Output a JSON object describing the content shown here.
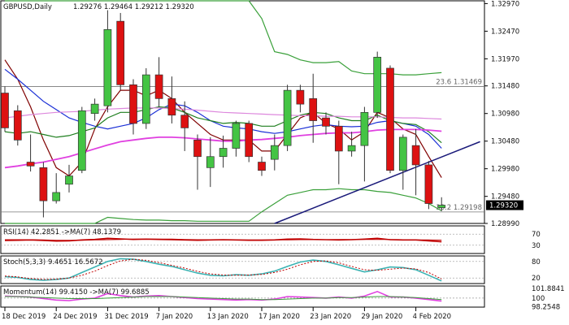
{
  "chart_data": [
    {
      "type": "candlestick",
      "title": "GBPUSD,Daily",
      "ohlc_header": "1.29276 1.29464 1.29212 1.29320",
      "last_price": "1.29320",
      "ylim": [
        1.2899,
        1.3302
      ],
      "yticks": [
        "1.32970",
        "1.32470",
        "1.31970",
        "1.31480",
        "1.30980",
        "1.30480",
        "1.29980",
        "1.29480",
        "1.28990"
      ],
      "xticks": [
        {
          "label": "18 Dec 2019",
          "i": 0
        },
        {
          "label": "24 Dec 2019",
          "i": 4
        },
        {
          "label": "31 Dec 2019",
          "i": 8
        },
        {
          "label": "7 Jan 2020",
          "i": 12
        },
        {
          "label": "13 Jan 2020",
          "i": 16
        },
        {
          "label": "17 Jan 2020",
          "i": 20
        },
        {
          "label": "23 Jan 2020",
          "i": 24
        },
        {
          "label": "29 Jan 2020",
          "i": 28
        },
        {
          "label": "4 Feb 2020",
          "i": 32
        }
      ],
      "candles": [
        {
          "o": 1.3135,
          "h": 1.3147,
          "l": 1.3065,
          "c": 1.3072
        },
        {
          "o": 1.3103,
          "h": 1.3113,
          "l": 1.304,
          "c": 1.305
        },
        {
          "o": 1.301,
          "h": 1.306,
          "l": 1.2993,
          "c": 1.3003
        },
        {
          "o": 1.3,
          "h": 1.301,
          "l": 1.291,
          "c": 1.294
        },
        {
          "o": 1.294,
          "h": 1.299,
          "l": 1.2935,
          "c": 1.2955
        },
        {
          "o": 1.297,
          "h": 1.3005,
          "l": 1.2955,
          "c": 1.2985
        },
        {
          "o": 1.2995,
          "h": 1.311,
          "l": 1.299,
          "c": 1.3103
        },
        {
          "o": 1.3098,
          "h": 1.3125,
          "l": 1.3085,
          "c": 1.3115
        },
        {
          "o": 1.3112,
          "h": 1.3285,
          "l": 1.31,
          "c": 1.325
        },
        {
          "o": 1.3265,
          "h": 1.328,
          "l": 1.314,
          "c": 1.315
        },
        {
          "o": 1.315,
          "h": 1.316,
          "l": 1.306,
          "c": 1.308
        },
        {
          "o": 1.308,
          "h": 1.318,
          "l": 1.307,
          "c": 1.3168
        },
        {
          "o": 1.3168,
          "h": 1.32,
          "l": 1.311,
          "c": 1.3125
        },
        {
          "o": 1.3125,
          "h": 1.3165,
          "l": 1.308,
          "c": 1.3095
        },
        {
          "o": 1.3095,
          "h": 1.312,
          "l": 1.303,
          "c": 1.3072
        },
        {
          "o": 1.305,
          "h": 1.306,
          "l": 1.296,
          "c": 1.302
        },
        {
          "o": 1.3,
          "h": 1.3055,
          "l": 1.2965,
          "c": 1.302
        },
        {
          "o": 1.302,
          "h": 1.3058,
          "l": 1.3,
          "c": 1.3035
        },
        {
          "o": 1.3035,
          "h": 1.3085,
          "l": 1.302,
          "c": 1.308
        },
        {
          "o": 1.308,
          "h": 1.3085,
          "l": 1.301,
          "c": 1.302
        },
        {
          "o": 1.301,
          "h": 1.302,
          "l": 1.2985,
          "c": 1.2995
        },
        {
          "o": 1.3015,
          "h": 1.306,
          "l": 1.2995,
          "c": 1.304
        },
        {
          "o": 1.304,
          "h": 1.315,
          "l": 1.303,
          "c": 1.314
        },
        {
          "o": 1.314,
          "h": 1.315,
          "l": 1.31,
          "c": 1.3115
        },
        {
          "o": 1.3125,
          "h": 1.317,
          "l": 1.3045,
          "c": 1.3085
        },
        {
          "o": 1.309,
          "h": 1.31,
          "l": 1.306,
          "c": 1.3075
        },
        {
          "o": 1.3075,
          "h": 1.3085,
          "l": 1.297,
          "c": 1.303
        },
        {
          "o": 1.303,
          "h": 1.3065,
          "l": 1.302,
          "c": 1.304
        },
        {
          "o": 1.304,
          "h": 1.311,
          "l": 1.2975,
          "c": 1.31
        },
        {
          "o": 1.31,
          "h": 1.321,
          "l": 1.309,
          "c": 1.32
        },
        {
          "o": 1.318,
          "h": 1.3185,
          "l": 1.299,
          "c": 1.2995
        },
        {
          "o": 1.2995,
          "h": 1.306,
          "l": 1.296,
          "c": 1.3055
        },
        {
          "o": 1.304,
          "h": 1.307,
          "l": 1.295,
          "c": 1.3005
        },
        {
          "o": 1.3005,
          "h": 1.3012,
          "l": 1.2925,
          "c": 1.2935
        },
        {
          "o": 1.29276,
          "h": 1.29464,
          "l": 1.29212,
          "c": 1.2932
        }
      ],
      "lines": [
        {
          "color": "#800000",
          "values": [
            1.3195,
            1.316,
            1.311,
            1.305,
            1.3,
            1.2985,
            1.301,
            1.307,
            1.311,
            1.314,
            1.314,
            1.313,
            1.314,
            1.3125,
            1.31,
            1.308,
            1.306,
            1.305,
            1.305,
            1.305,
            1.303,
            1.303,
            1.306,
            1.309,
            1.31,
            1.308,
            1.307,
            1.305,
            1.3065,
            1.31,
            1.309,
            1.307,
            1.306,
            1.302,
            1.2982
          ]
        },
        {
          "color": "#1a2fd6",
          "values": [
            1.3178,
            1.316,
            1.314,
            1.312,
            1.3105,
            1.309,
            1.3082,
            1.3075,
            1.307,
            1.3075,
            1.308,
            1.309,
            1.3105,
            1.3115,
            1.3112,
            1.31,
            1.3085,
            1.3075,
            1.3072,
            1.307,
            1.3065,
            1.3062,
            1.3065,
            1.307,
            1.3075,
            1.3078,
            1.3075,
            1.3074,
            1.3075,
            1.3082,
            1.3085,
            1.308,
            1.3075,
            1.306,
            1.3035
          ]
        },
        {
          "color": "#1f7f1f",
          "values": [
            1.3065,
            1.3062,
            1.3065,
            1.306,
            1.3055,
            1.3058,
            1.3065,
            1.3072,
            1.309,
            1.31,
            1.31,
            1.3105,
            1.311,
            1.3108,
            1.31,
            1.309,
            1.3085,
            1.308,
            1.3082,
            1.308,
            1.3075,
            1.3075,
            1.3085,
            1.3095,
            1.31,
            1.3098,
            1.309,
            1.3085,
            1.3085,
            1.3095,
            1.3085,
            1.308,
            1.3078,
            1.3065,
            1.3045
          ]
        },
        {
          "color": "#e040e0",
          "values": [
            1.3,
            1.3003,
            1.3007,
            1.301,
            1.3015,
            1.302,
            1.3027,
            1.3034,
            1.3041,
            1.3047,
            1.305,
            1.3053,
            1.3055,
            1.3055,
            1.3054,
            1.3052,
            1.305,
            1.3048,
            1.3048,
            1.305,
            1.3051,
            1.3053,
            1.3055,
            1.3058,
            1.306,
            1.3062,
            1.3063,
            1.3063,
            1.3065,
            1.3068,
            1.3069,
            1.3069,
            1.3069,
            1.3068,
            1.3066
          ]
        },
        {
          "color": "#dd88dd",
          "values": [
            1.309,
            1.3093,
            1.3096,
            1.3098,
            1.31,
            1.3101,
            1.3102,
            1.3104,
            1.3106,
            1.3107,
            1.3108,
            1.3108,
            1.3108,
            1.3107,
            1.3106,
            1.3104,
            1.3102,
            1.31,
            1.3099,
            1.3098,
            1.3097,
            1.3096,
            1.3095,
            1.3094,
            1.3094,
            1.3093,
            1.3093,
            1.3092,
            1.3092,
            1.3092,
            1.3091,
            1.309,
            1.309,
            1.3089,
            1.3088
          ]
        },
        {
          "color": "#3aa03a",
          "values": [
            1.3302,
            1.3302,
            1.3302,
            1.3302,
            1.3302,
            1.3302,
            1.3302,
            1.3302,
            1.3302,
            1.3302,
            1.3302,
            1.3302,
            1.3302,
            1.3302,
            1.3302,
            1.3302,
            1.3302,
            1.3302,
            1.3302,
            1.3302,
            1.327,
            1.321,
            1.3205,
            1.3195,
            1.319,
            1.319,
            1.3192,
            1.3175,
            1.317,
            1.317,
            1.317,
            1.3168,
            1.3168,
            1.317,
            1.3172
          ]
        },
        {
          "color": "#3aa03a",
          "values": [
            1.2899,
            1.2899,
            1.2899,
            1.2899,
            1.2899,
            1.2899,
            1.2899,
            1.2899,
            1.291,
            1.2908,
            1.2906,
            1.2905,
            1.2905,
            1.2904,
            1.2904,
            1.2903,
            1.2903,
            1.2903,
            1.2903,
            1.2903,
            1.292,
            1.2935,
            1.295,
            1.2955,
            1.296,
            1.296,
            1.2962,
            1.296,
            1.296,
            1.2957,
            1.2955,
            1.295,
            1.2945,
            1.2935,
            1.2922
          ]
        }
      ],
      "trendline": [
        {
          "i": 21,
          "v": 1.2899
        },
        {
          "i": 37,
          "v": 1.3047
        }
      ],
      "hlines": [
        {
          "v": 1.31469,
          "label": "23.6 1.31469"
        },
        {
          "v": 1.29198,
          "label": "38.2 1.29198"
        }
      ]
    },
    {
      "type": "line",
      "title": "RSI(14) 42.2851 ->MA(7) 48.1379",
      "ylim": [
        0,
        100
      ],
      "levels": [
        70,
        30
      ],
      "yticks": [
        "70",
        "30"
      ],
      "series": [
        {
          "color": "#c00000",
          "values": [
            47,
            48,
            49,
            47,
            45,
            46,
            49,
            51,
            55,
            53,
            51,
            52,
            51,
            50,
            49,
            48,
            49,
            50,
            49,
            48,
            48,
            49,
            52,
            53,
            51,
            50,
            49,
            50,
            52,
            55,
            50,
            49,
            49,
            46,
            42.3
          ]
        },
        {
          "color": "#c00000",
          "values": [
            50,
            50,
            50,
            49,
            48,
            48,
            48,
            49,
            50,
            51,
            52,
            52,
            52,
            52,
            51,
            50,
            50,
            49,
            49,
            49,
            49,
            49,
            49,
            50,
            50,
            50,
            51,
            51,
            51,
            51,
            51,
            50,
            49,
            49,
            48.1
          ]
        }
      ]
    },
    {
      "type": "line",
      "title": "Stoch(5,3,3) 9.4651 16.5672",
      "ylim": [
        0,
        100
      ],
      "levels": [
        80,
        20
      ],
      "yticks": [
        "80",
        "20"
      ],
      "series": [
        {
          "color": "#3cb3b3",
          "values": [
            25,
            22,
            15,
            12,
            15,
            20,
            40,
            60,
            80,
            90,
            88,
            80,
            70,
            62,
            50,
            38,
            30,
            28,
            32,
            30,
            35,
            45,
            62,
            78,
            85,
            80,
            68,
            55,
            42,
            50,
            60,
            58,
            50,
            30,
            9.5
          ]
        },
        {
          "color": "#c00000",
          "values": [
            27,
            24,
            18,
            15,
            16,
            20,
            30,
            45,
            65,
            82,
            88,
            84,
            76,
            66,
            56,
            44,
            35,
            31,
            30,
            31,
            33,
            40,
            52,
            68,
            80,
            82,
            75,
            62,
            50,
            48,
            52,
            56,
            53,
            40,
            16.6
          ]
        }
      ]
    },
    {
      "type": "line",
      "title": "Momentum(14) 99.4150 ->MA(7) 99.6885",
      "ylim": [
        98.2,
        102.4
      ],
      "levels": [
        100
      ],
      "yticks": [
        "101.8841",
        "100",
        "98.2548"
      ],
      "series": [
        {
          "color": "#e040e0",
          "values": [
            100.4,
            100.3,
            100.2,
            99.9,
            99.6,
            99.5,
            99.8,
            100.0,
            100.9,
            100.5,
            100.2,
            100.4,
            100.5,
            100.3,
            100.1,
            99.9,
            99.8,
            99.7,
            99.6,
            99.7,
            99.6,
            99.8,
            100.3,
            100.2,
            100.1,
            100.0,
            100.2,
            100.0,
            100.4,
            101.3,
            100.2,
            100.2,
            100.0,
            99.7,
            99.4
          ]
        },
        {
          "color": "#3a9a3a",
          "values": [
            100.3,
            100.3,
            100.2,
            100.1,
            100.0,
            99.9,
            99.9,
            99.9,
            100.0,
            100.1,
            100.2,
            100.3,
            100.3,
            100.3,
            100.2,
            100.1,
            100.0,
            99.9,
            99.8,
            99.8,
            99.7,
            99.7,
            99.8,
            99.9,
            100.0,
            100.0,
            100.1,
            100.1,
            100.2,
            100.3,
            100.3,
            100.2,
            100.1,
            99.9,
            99.7
          ]
        }
      ]
    }
  ]
}
